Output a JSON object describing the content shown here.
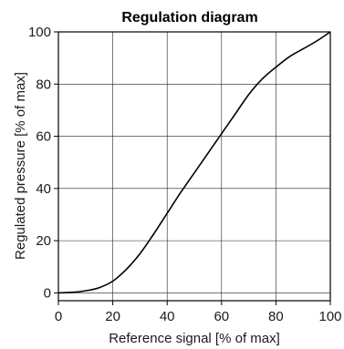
{
  "chart_data": {
    "type": "line",
    "title": "Regulation diagram",
    "xlabel": "Reference signal [% of max]",
    "ylabel": "Regulated pressure [% of max]",
    "xlim": [
      0,
      100
    ],
    "ylim": [
      -3,
      100
    ],
    "x_ticks": [
      0,
      20,
      40,
      60,
      80,
      100
    ],
    "y_ticks": [
      0,
      20,
      40,
      60,
      80,
      100
    ],
    "grid": true,
    "series": [
      {
        "x": [
          0,
          5,
          10,
          15,
          20,
          25,
          30,
          35,
          40,
          45,
          50,
          55,
          60,
          65,
          70,
          75,
          80,
          85,
          90,
          95,
          100
        ],
        "y": [
          0,
          0.2,
          0.8,
          2,
          4.5,
          9,
          15,
          22.5,
          30.5,
          38.5,
          46,
          53.5,
          61,
          68.5,
          76,
          82,
          86.5,
          90.5,
          93.5,
          96.5,
          100
        ]
      }
    ]
  }
}
